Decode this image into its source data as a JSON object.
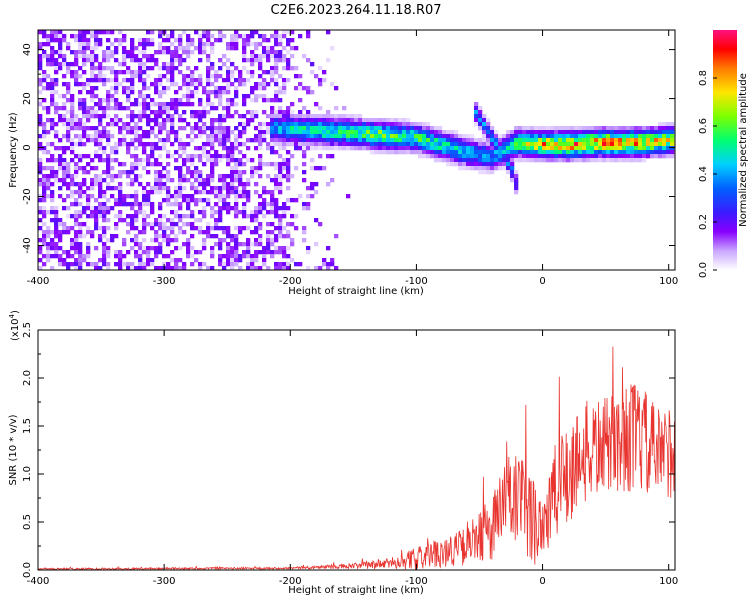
{
  "title": "C2E6.2023.264.11.18.R07",
  "chart_data": [
    {
      "type": "heatmap",
      "xlabel": "Height of straight line (km)",
      "ylabel": "Frequency (Hz)",
      "xlim": [
        -400,
        105
      ],
      "ylim": [
        -50,
        48
      ],
      "x_ticks": [
        "-400",
        "-300",
        "-200",
        "-100",
        "0",
        "100"
      ],
      "y_ticks": [
        "40",
        "20",
        "0",
        "-20",
        "-40"
      ],
      "colorbar": {
        "label": "Normalized spectral amplitude",
        "range": [
          0.0,
          1.0
        ],
        "ticks": [
          "0.0",
          "0.2",
          "0.4",
          "0.6",
          "0.8"
        ]
      },
      "noise_region": {
        "x_range": [
          -400,
          -150
        ],
        "amplitude": [
          0.0,
          0.15
        ]
      },
      "ridge": [
        {
          "x": -215,
          "y": 8,
          "amp": 0.45
        },
        {
          "x": -190,
          "y": 7,
          "amp": 0.55
        },
        {
          "x": -160,
          "y": 6.5,
          "amp": 0.6
        },
        {
          "x": -130,
          "y": 5,
          "amp": 0.7
        },
        {
          "x": -100,
          "y": 4,
          "amp": 0.6
        },
        {
          "x": -80,
          "y": 1,
          "amp": 0.55
        },
        {
          "x": -60,
          "y": -2,
          "amp": 0.5
        },
        {
          "x": -40,
          "y": -4,
          "amp": 0.4
        },
        {
          "x": -20,
          "y": 2,
          "amp": 0.65
        },
        {
          "x": 0,
          "y": 1,
          "amp": 0.85
        },
        {
          "x": 20,
          "y": 1,
          "amp": 0.9
        },
        {
          "x": 50,
          "y": 2,
          "amp": 0.9
        },
        {
          "x": 80,
          "y": 2,
          "amp": 0.85
        },
        {
          "x": 105,
          "y": 3,
          "amp": 0.75
        }
      ],
      "branch": [
        {
          "x": -55,
          "y": 16,
          "amp": 0.45
        },
        {
          "x": -45,
          "y": 8,
          "amp": 0.45
        },
        {
          "x": -35,
          "y": 0,
          "amp": 0.45
        },
        {
          "x": -25,
          "y": -8,
          "amp": 0.4
        },
        {
          "x": -20,
          "y": -16,
          "amp": 0.35
        }
      ]
    },
    {
      "type": "line",
      "xlabel": "Height of straight line (km)",
      "ylabel": "SNR (10 * v/v)",
      "y_multiplier": "(x10",
      "y_multiplier_exp": "4",
      "y_multiplier_close": ")",
      "xlim": [
        -400,
        105
      ],
      "ylim": [
        0,
        2.5
      ],
      "x_ticks": [
        "-400",
        "-300",
        "-200",
        "-100",
        "0",
        "100"
      ],
      "y_ticks": [
        "0.0",
        "0.5",
        "1.0",
        "1.5",
        "2.0",
        "2.5"
      ],
      "color": "#e8332e",
      "envelope": [
        {
          "x": -400,
          "mean": 0.01,
          "amp": 0.01
        },
        {
          "x": -200,
          "mean": 0.02,
          "amp": 0.01
        },
        {
          "x": -150,
          "mean": 0.04,
          "amp": 0.03
        },
        {
          "x": -120,
          "mean": 0.07,
          "amp": 0.06
        },
        {
          "x": -100,
          "mean": 0.12,
          "amp": 0.12
        },
        {
          "x": -80,
          "mean": 0.18,
          "amp": 0.15
        },
        {
          "x": -60,
          "mean": 0.25,
          "amp": 0.2
        },
        {
          "x": -40,
          "mean": 0.45,
          "amp": 0.35
        },
        {
          "x": -25,
          "mean": 0.75,
          "amp": 0.6
        },
        {
          "x": -10,
          "mean": 0.55,
          "amp": 0.5
        },
        {
          "x": 0,
          "mean": 0.5,
          "amp": 0.45
        },
        {
          "x": 15,
          "mean": 0.9,
          "amp": 0.6
        },
        {
          "x": 30,
          "mean": 1.2,
          "amp": 0.55
        },
        {
          "x": 50,
          "mean": 1.3,
          "amp": 0.5
        },
        {
          "x": 75,
          "mean": 1.4,
          "amp": 0.6
        },
        {
          "x": 90,
          "mean": 1.2,
          "amp": 0.5
        },
        {
          "x": 105,
          "mean": 1.25,
          "amp": 0.5
        }
      ]
    }
  ]
}
